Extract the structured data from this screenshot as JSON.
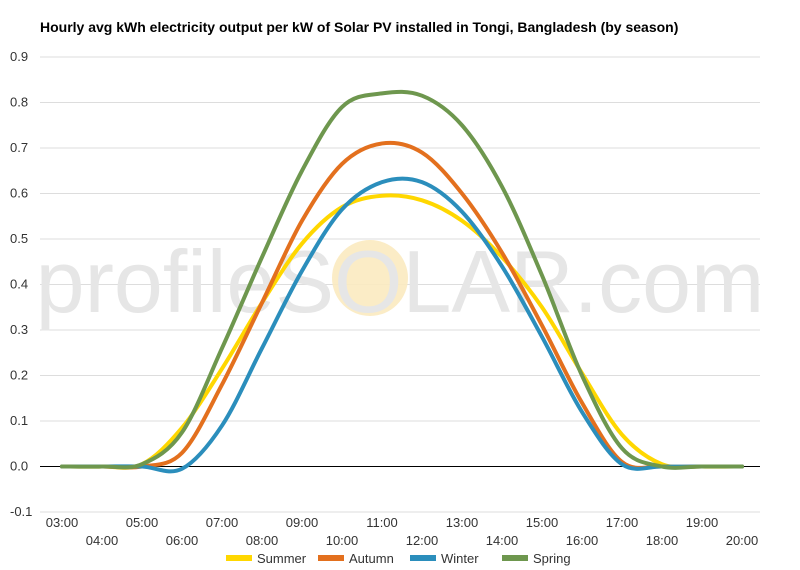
{
  "chart_data": {
    "type": "line",
    "title": "Hourly avg kWh electricity output per kW of Solar PV installed in Tongi, Bangladesh (by season)",
    "watermark": "profileSOLAR.com",
    "x": [
      "03:00",
      "04:00",
      "05:00",
      "06:00",
      "07:00",
      "08:00",
      "09:00",
      "10:00",
      "11:00",
      "12:00",
      "13:00",
      "14:00",
      "15:00",
      "16:00",
      "17:00",
      "18:00",
      "19:00",
      "20:00"
    ],
    "ylim": [
      -0.1,
      0.9
    ],
    "yticks": [
      "-0.1",
      "0.0",
      "0.1",
      "0.2",
      "0.3",
      "0.4",
      "0.5",
      "0.6",
      "0.7",
      "0.8",
      "0.9"
    ],
    "grid": true,
    "legend_position": "bottom",
    "series": [
      {
        "name": "Summer",
        "color": "#FFD700",
        "values": [
          0.0,
          0.0,
          0.005,
          0.085,
          0.215,
          0.36,
          0.49,
          0.57,
          0.595,
          0.585,
          0.54,
          0.46,
          0.35,
          0.205,
          0.07,
          0.005,
          0.0,
          0.0
        ]
      },
      {
        "name": "Autumn",
        "color": "#E3701E",
        "values": [
          0.0,
          0.0,
          0.0,
          0.03,
          0.18,
          0.36,
          0.54,
          0.665,
          0.71,
          0.69,
          0.6,
          0.47,
          0.31,
          0.14,
          0.01,
          0.0,
          0.0,
          0.0
        ]
      },
      {
        "name": "Winter",
        "color": "#2B8EBC",
        "values": [
          0.0,
          0.0,
          0.0,
          -0.005,
          0.09,
          0.26,
          0.43,
          0.565,
          0.625,
          0.625,
          0.56,
          0.44,
          0.285,
          0.12,
          0.005,
          0.0,
          0.0,
          0.0
        ]
      },
      {
        "name": "Spring",
        "color": "#6E974E",
        "values": [
          0.0,
          0.0,
          0.005,
          0.075,
          0.26,
          0.46,
          0.65,
          0.79,
          0.82,
          0.815,
          0.75,
          0.615,
          0.42,
          0.2,
          0.04,
          0.0,
          0.0,
          0.0
        ]
      }
    ]
  }
}
